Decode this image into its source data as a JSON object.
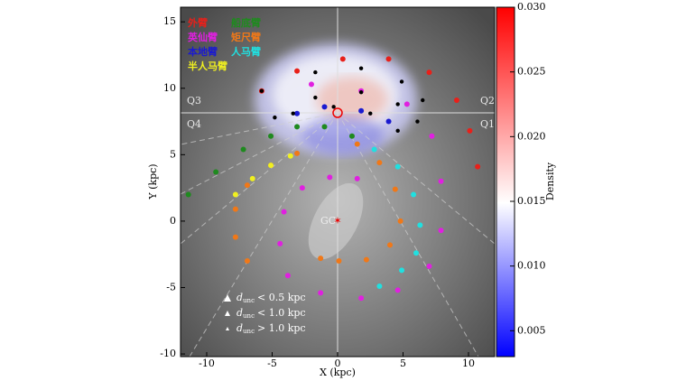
{
  "chart_data": {
    "type": "scatter",
    "xlabel": "X (kpc)",
    "ylabel": "Y (kpc)",
    "xlim": [
      -12,
      12
    ],
    "ylim": [
      -10.2,
      16.1
    ],
    "xticks": [
      -10,
      -5,
      0,
      5,
      10
    ],
    "yticks": [
      -10,
      -5,
      0,
      5,
      10,
      15
    ],
    "quadrants": [
      "Q1",
      "Q2",
      "Q3",
      "Q4"
    ],
    "center_label": "GC",
    "colorbar": {
      "label": "Density",
      "lim": [
        0.003,
        0.03
      ],
      "ticks": [
        0.005,
        {
          "value": 0.01,
          "label": "0.010"
        },
        0.015,
        {
          "value": 0.02,
          "label": "0.020"
        },
        0.025,
        {
          "value": 0.03,
          "label": "0.030"
        }
      ]
    },
    "series": [
      {
        "name": "外臂",
        "color": "#e8201a",
        "x": [
          -5.8,
          -3.1,
          0.4,
          3.9,
          7.0,
          9.1,
          10.1,
          10.7
        ],
        "values": [
          9.8,
          11.3,
          12.2,
          12.2,
          11.2,
          9.1,
          6.8,
          4.1
        ]
      },
      {
        "name": "船底臂",
        "color": "#1f8a1f",
        "x": [
          -11.4,
          -9.3,
          -7.2,
          -5.1,
          -3.1,
          -1.0,
          1.1
        ],
        "values": [
          2.0,
          3.7,
          5.4,
          6.4,
          7.1,
          7.1,
          6.4
        ]
      },
      {
        "name": "英仙臂",
        "color": "#e020e0",
        "x": [
          -2.0,
          1.8,
          5.3,
          7.2,
          7.9,
          7.9,
          7.0,
          4.6,
          1.8,
          -1.3,
          -3.8,
          -4.4,
          -4.1,
          -2.7,
          -0.6,
          1.5
        ],
        "values": [
          10.3,
          9.8,
          8.8,
          6.4,
          3.0,
          -0.7,
          -3.4,
          -5.2,
          -5.8,
          -5.4,
          -4.1,
          -1.7,
          0.7,
          2.5,
          3.3,
          3.2
        ]
      },
      {
        "name": "矩尺臂",
        "color": "#f07818",
        "x": [
          -6.9,
          -7.8,
          -7.8,
          -6.9,
          -5.1,
          -3.1,
          1.5,
          3.2,
          4.4,
          4.8,
          4.0,
          2.2,
          0.1,
          -1.3
        ],
        "values": [
          -3.0,
          -1.2,
          0.9,
          2.7,
          4.2,
          5.1,
          5.8,
          4.4,
          2.4,
          0.0,
          -1.8,
          -2.9,
          -3.0,
          -2.8
        ]
      },
      {
        "name": "本地臂",
        "color": "#1a1ad0",
        "x": [
          -3.1,
          -1.0,
          1.8,
          3.9
        ],
        "values": [
          8.1,
          8.6,
          8.3,
          7.5
        ]
      },
      {
        "name": "人马臂",
        "color": "#20e0e0",
        "x": [
          2.8,
          4.6,
          5.8,
          6.3,
          6.0,
          4.9,
          3.2
        ],
        "values": [
          5.4,
          4.1,
          2.0,
          -0.3,
          -2.4,
          -3.7,
          -4.9
        ]
      },
      {
        "name": "半人马臂",
        "color": "#f0f020",
        "x": [
          -7.8,
          -6.5,
          -5.1,
          -3.6
        ],
        "values": [
          2.0,
          3.2,
          4.2,
          4.9
        ]
      },
      {
        "color": "#000000",
        "x": [
          -5.8,
          -1.7,
          1.8,
          4.9,
          6.5
        ],
        "values": [
          9.8,
          11.2,
          11.5,
          10.5,
          9.1
        ]
      },
      {
        "color": "#000000",
        "x": [
          -4.8,
          -1.7,
          1.8,
          4.6,
          6.1
        ],
        "values": [
          7.8,
          9.3,
          9.7,
          8.8,
          7.5
        ]
      },
      {
        "color": "#000000",
        "x": [
          -3.4,
          -0.3,
          2.5,
          4.6
        ],
        "values": [
          8.1,
          8.6,
          8.1,
          6.8
        ]
      }
    ],
    "marker_legend": [
      {
        "symbol": "d",
        "subscript": "unc",
        "text": "< 0.5 kpc"
      },
      {
        "symbol": "d",
        "subscript": "unc",
        "text": "< 1.0 kpc"
      },
      {
        "symbol": "d",
        "subscript": "unc",
        "text": "> 1.0 kpc"
      }
    ]
  }
}
